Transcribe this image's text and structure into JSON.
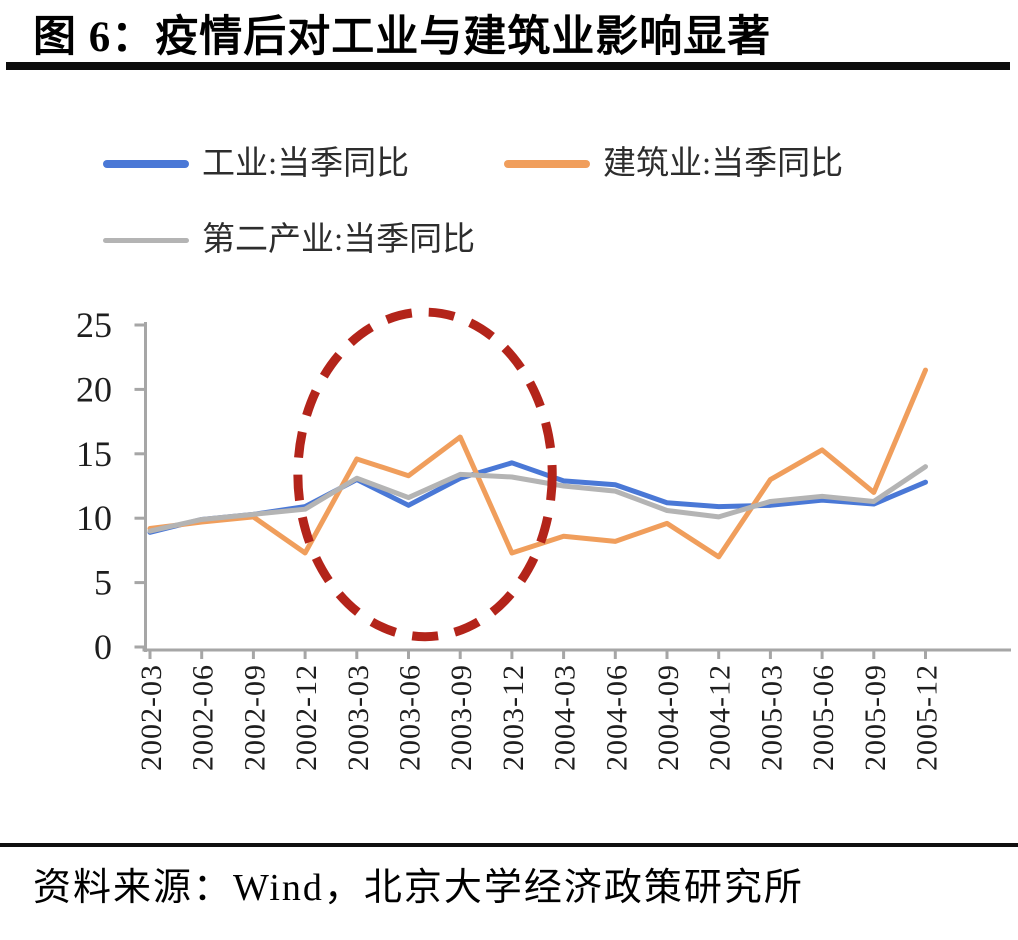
{
  "header": {
    "title": "图 6：疫情后对工业与建筑业影响显著"
  },
  "legend": {
    "items": [
      {
        "id": "industry",
        "label": "工业:当季同比",
        "color": "#4a78d6"
      },
      {
        "id": "construction",
        "label": "建筑业:当季同比",
        "color": "#f09e5c"
      },
      {
        "id": "secondary",
        "label": "第二产业:当季同比",
        "color": "#b4b4b4"
      }
    ]
  },
  "chart_data": {
    "type": "line",
    "title": "图 6：疫情后对工业与建筑业影响显著",
    "categories": [
      "2002-03",
      "2002-06",
      "2002-09",
      "2002-12",
      "2003-03",
      "2003-06",
      "2003-09",
      "2003-12",
      "2004-03",
      "2004-06",
      "2004-09",
      "2004-12",
      "2005-03",
      "2005-06",
      "2005-09",
      "2005-12"
    ],
    "series": [
      {
        "id": "industry",
        "name": "工业:当季同比",
        "color": "#4a78d6",
        "values": [
          8.9,
          9.9,
          10.3,
          10.9,
          13.0,
          11.0,
          13.1,
          14.3,
          12.9,
          12.6,
          11.2,
          10.9,
          11.0,
          11.4,
          11.1,
          12.8
        ]
      },
      {
        "id": "construction",
        "name": "建筑业:当季同比",
        "color": "#f09e5c",
        "values": [
          9.2,
          9.7,
          10.1,
          7.3,
          14.6,
          13.3,
          16.3,
          7.3,
          8.6,
          8.2,
          9.6,
          7.0,
          13.0,
          15.3,
          12.0,
          21.5
        ]
      },
      {
        "id": "secondary",
        "name": "第二产业:当季同比",
        "color": "#b4b4b4",
        "values": [
          9.0,
          9.9,
          10.3,
          10.7,
          13.1,
          11.6,
          13.4,
          13.2,
          12.5,
          12.1,
          10.6,
          10.1,
          11.3,
          11.7,
          11.3,
          14.0
        ]
      }
    ],
    "ylim": [
      0,
      25
    ],
    "yticks": [
      0,
      5,
      10,
      15,
      20,
      25
    ],
    "xlabel": "",
    "ylabel": "",
    "grid": false,
    "legend_position": "top-left",
    "annotation": {
      "type": "dashed_ellipse",
      "color": "#b3241a",
      "center_category_index": 5.32,
      "center_value": 13.4,
      "radius_categories": 2.46,
      "radius_value": 12.6
    }
  },
  "footer": {
    "source": "资料来源：Wind，北京大学经济政策研究所"
  }
}
